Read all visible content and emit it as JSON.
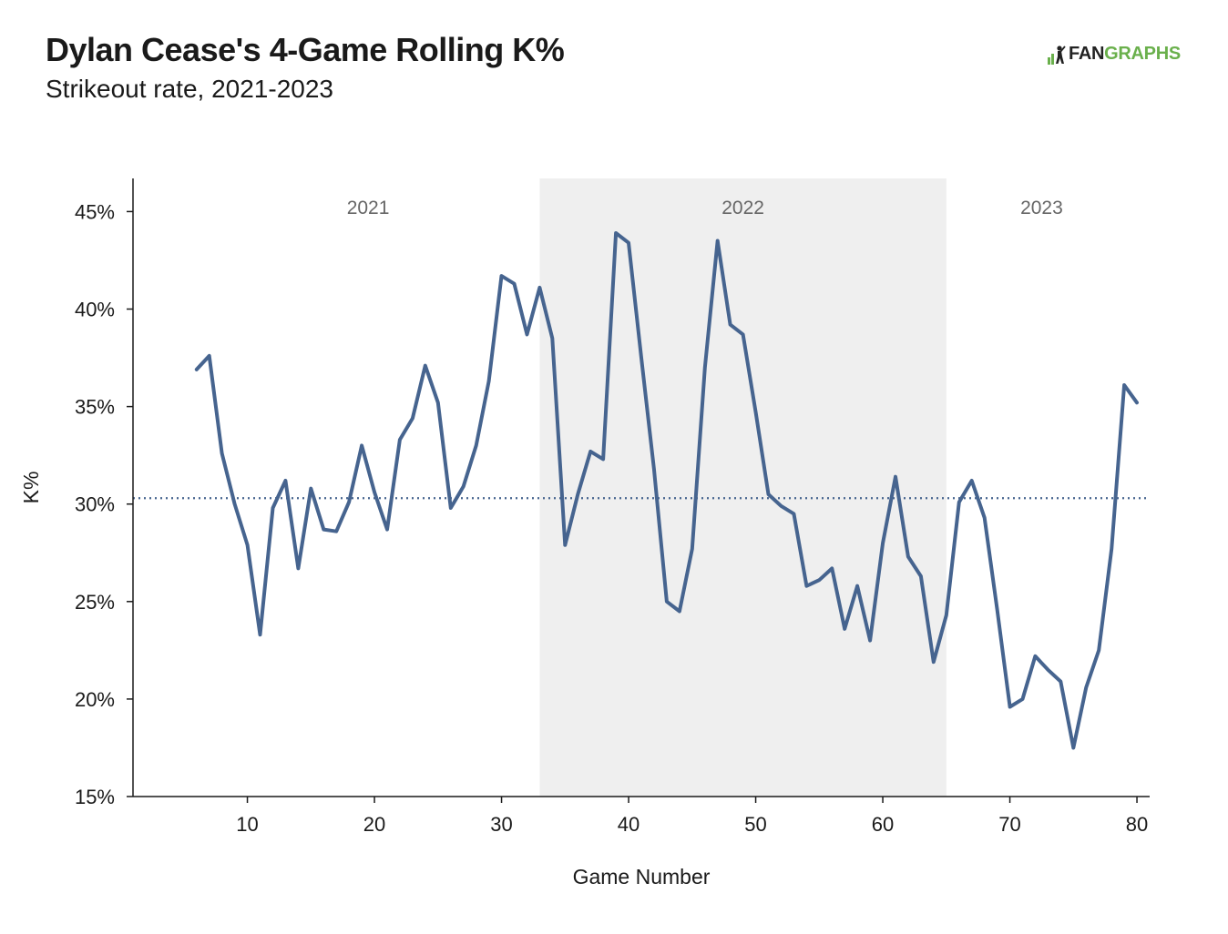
{
  "header": {
    "title": "Dylan Cease's 4-Game Rolling K%",
    "subtitle": "Strikeout rate, 2021-2023"
  },
  "logo": {
    "text_dark": "FAN",
    "text_green": "GRAPHS",
    "icon": "batter-silhouette-icon"
  },
  "colors": {
    "line": "#46648f",
    "shade": "#efefef",
    "brand_green": "#6ab04c",
    "axis": "#1a1a1a",
    "era_label": "#666666"
  },
  "chart_data": {
    "type": "line",
    "title": "Dylan Cease's 4-Game Rolling K%",
    "subtitle": "Strikeout rate, 2021-2023",
    "xlabel": "Game Number",
    "ylabel": "K%",
    "xlim": [
      1,
      81
    ],
    "ylim": [
      15,
      46.7
    ],
    "x_ticks": [
      10,
      20,
      30,
      40,
      50,
      60,
      70,
      80
    ],
    "y_ticks": [
      15,
      20,
      25,
      30,
      35,
      40,
      45
    ],
    "y_tick_labels": [
      "15%",
      "20%",
      "25%",
      "30%",
      "35%",
      "40%",
      "45%"
    ],
    "grid": false,
    "reference_line": {
      "value": 30.3,
      "style": "dotted"
    },
    "shaded_regions": [
      {
        "label": "2022",
        "x_start": 33,
        "x_end": 65
      }
    ],
    "era_labels": [
      {
        "label": "2021",
        "x_center": 19.5
      },
      {
        "label": "2022",
        "x_center": 49
      },
      {
        "label": "2023",
        "x_center": 72.5
      }
    ],
    "series": [
      {
        "x": [
          6,
          7,
          8,
          9,
          10,
          11,
          12,
          13,
          14,
          15,
          16,
          17,
          18,
          19,
          20,
          21,
          22,
          23,
          24,
          25,
          26,
          27,
          28,
          29,
          30,
          31,
          32,
          33,
          34,
          35,
          36,
          37,
          38,
          39,
          40,
          41,
          42,
          43,
          44,
          45,
          46,
          47,
          48,
          49,
          50,
          51,
          52,
          53,
          54,
          55,
          56,
          57,
          58,
          59,
          60,
          61,
          62,
          63,
          64,
          65,
          66,
          67,
          68,
          69,
          70,
          71,
          72,
          73,
          74,
          75,
          76,
          77,
          78,
          79,
          80
        ],
        "values": [
          36.9,
          37.6,
          32.6,
          30.0,
          27.9,
          23.3,
          29.8,
          31.2,
          26.7,
          30.8,
          28.7,
          28.6,
          30.1,
          33.0,
          30.6,
          28.7,
          33.3,
          34.4,
          37.1,
          35.2,
          29.8,
          30.9,
          33.0,
          36.3,
          41.7,
          41.3,
          38.7,
          41.1,
          38.5,
          27.9,
          30.5,
          32.7,
          32.3,
          43.9,
          43.4,
          37.5,
          31.8,
          25.0,
          24.5,
          27.7,
          37.0,
          43.5,
          39.2,
          38.7,
          34.7,
          30.5,
          29.9,
          29.5,
          25.8,
          26.1,
          26.7,
          23.6,
          25.8,
          23.0,
          28.0,
          31.4,
          27.3,
          26.3,
          21.9,
          24.3,
          30.1,
          31.2,
          29.3,
          24.6,
          19.6,
          20.0,
          22.2,
          21.5,
          20.9,
          17.5,
          20.6,
          22.5,
          27.7,
          36.1,
          35.2
        ]
      }
    ]
  }
}
